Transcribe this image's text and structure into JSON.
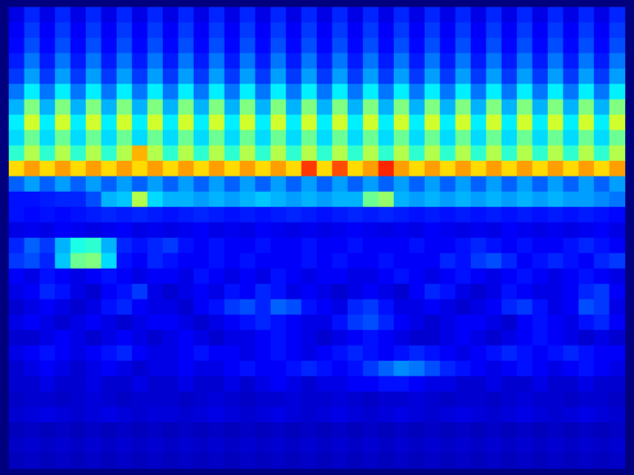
{
  "chart_data": {
    "type": "heatmap",
    "color": "jet",
    "tick_labels": false,
    "zlim": [
      0,
      100
    ],
    "cells": [
      [
        10,
        16,
        10,
        16,
        10,
        16,
        10,
        16,
        10,
        16,
        10,
        16,
        10,
        16,
        10,
        16,
        10,
        16,
        10,
        16,
        10,
        16,
        10,
        16,
        10,
        16,
        10,
        16,
        10,
        16,
        10,
        16,
        10,
        16,
        10,
        16,
        10,
        16,
        10,
        16
      ],
      [
        12,
        18,
        12,
        18,
        12,
        18,
        12,
        18,
        12,
        18,
        12,
        18,
        12,
        18,
        12,
        18,
        12,
        18,
        12,
        18,
        12,
        18,
        12,
        18,
        12,
        18,
        12,
        18,
        12,
        18,
        12,
        18,
        12,
        18,
        12,
        18,
        12,
        18,
        12,
        18
      ],
      [
        13,
        20,
        13,
        20,
        13,
        20,
        13,
        20,
        13,
        20,
        13,
        20,
        13,
        20,
        13,
        20,
        13,
        20,
        13,
        20,
        13,
        20,
        13,
        20,
        13,
        20,
        13,
        20,
        13,
        20,
        13,
        20,
        13,
        20,
        13,
        20,
        13,
        20,
        13,
        20
      ],
      [
        15,
        24,
        15,
        24,
        15,
        24,
        15,
        24,
        15,
        24,
        15,
        24,
        15,
        24,
        15,
        24,
        15,
        24,
        15,
        24,
        15,
        24,
        15,
        24,
        15,
        24,
        15,
        24,
        15,
        24,
        15,
        24,
        15,
        24,
        15,
        24,
        15,
        24,
        15,
        24
      ],
      [
        18,
        28,
        18,
        28,
        18,
        28,
        18,
        28,
        18,
        28,
        18,
        28,
        18,
        28,
        18,
        28,
        18,
        28,
        18,
        28,
        18,
        28,
        18,
        28,
        18,
        28,
        18,
        28,
        18,
        28,
        18,
        28,
        18,
        28,
        18,
        28,
        18,
        28,
        18,
        28
      ],
      [
        24,
        36,
        24,
        36,
        24,
        36,
        24,
        36,
        24,
        36,
        24,
        36,
        24,
        36,
        24,
        36,
        24,
        36,
        24,
        36,
        24,
        36,
        24,
        36,
        24,
        36,
        24,
        36,
        24,
        36,
        24,
        36,
        24,
        36,
        24,
        36,
        24,
        36,
        24,
        36
      ],
      [
        30,
        50,
        30,
        50,
        30,
        50,
        30,
        50,
        30,
        50,
        30,
        50,
        30,
        50,
        30,
        50,
        30,
        50,
        30,
        50,
        30,
        50,
        30,
        50,
        30,
        50,
        30,
        50,
        30,
        50,
        30,
        50,
        30,
        50,
        30,
        50,
        30,
        50,
        30,
        50
      ],
      [
        36,
        58,
        36,
        58,
        36,
        58,
        36,
        58,
        36,
        58,
        36,
        58,
        36,
        58,
        36,
        58,
        36,
        58,
        36,
        58,
        36,
        58,
        36,
        58,
        36,
        58,
        36,
        58,
        36,
        58,
        36,
        58,
        36,
        58,
        36,
        58,
        36,
        58,
        36,
        58
      ],
      [
        34,
        48,
        34,
        48,
        34,
        48,
        34,
        48,
        34,
        48,
        34,
        48,
        34,
        48,
        34,
        48,
        34,
        48,
        34,
        48,
        34,
        48,
        34,
        48,
        34,
        48,
        34,
        48,
        34,
        48,
        34,
        48,
        34,
        48,
        34,
        48,
        34,
        48,
        34,
        48
      ],
      [
        42,
        55,
        42,
        55,
        42,
        55,
        42,
        55,
        70,
        55,
        42,
        55,
        42,
        55,
        42,
        55,
        42,
        55,
        42,
        55,
        42,
        55,
        42,
        55,
        42,
        55,
        42,
        55,
        42,
        55,
        42,
        55,
        42,
        55,
        42,
        55,
        42,
        55,
        42,
        55
      ],
      [
        66,
        72,
        66,
        72,
        66,
        72,
        66,
        72,
        66,
        72,
        66,
        72,
        66,
        72,
        66,
        72,
        66,
        72,
        66,
        82,
        66,
        80,
        66,
        72,
        84,
        72,
        66,
        72,
        66,
        72,
        66,
        72,
        66,
        72,
        66,
        72,
        66,
        72,
        66,
        72
      ],
      [
        22,
        28,
        22,
        28,
        22,
        28,
        22,
        28,
        22,
        28,
        22,
        28,
        22,
        28,
        22,
        28,
        22,
        28,
        22,
        28,
        22,
        28,
        22,
        28,
        22,
        28,
        22,
        28,
        22,
        28,
        22,
        28,
        22,
        28,
        22,
        28,
        22,
        28,
        22,
        28
      ],
      [
        14,
        14,
        15,
        16,
        16,
        20,
        30,
        32,
        55,
        34,
        30,
        30,
        28,
        30,
        28,
        30,
        32,
        30,
        28,
        30,
        28,
        30,
        30,
        48,
        52,
        30,
        28,
        30,
        28,
        30,
        28,
        30,
        28,
        30,
        28,
        30,
        28,
        28,
        26,
        24
      ],
      [
        14,
        13,
        14,
        13,
        14,
        15,
        16,
        15,
        16,
        15,
        14,
        15,
        16,
        15,
        14,
        15,
        14,
        15,
        16,
        15,
        14,
        15,
        16,
        15,
        16,
        15,
        14,
        15,
        14,
        15,
        14,
        15,
        14,
        15,
        14,
        15,
        14,
        15,
        14,
        13
      ],
      [
        10,
        11,
        10,
        12,
        11,
        10,
        11,
        12,
        10,
        11,
        10,
        11,
        12,
        10,
        11,
        10,
        12,
        11,
        10,
        11,
        10,
        11,
        12,
        11,
        10,
        11,
        10,
        12,
        11,
        10,
        11,
        10,
        12,
        11,
        10,
        11,
        10,
        11,
        12,
        10
      ],
      [
        16,
        22,
        18,
        30,
        40,
        42,
        30,
        16,
        14,
        16,
        18,
        14,
        12,
        14,
        12,
        12,
        14,
        12,
        12,
        14,
        12,
        12,
        14,
        12,
        12,
        12,
        14,
        12,
        12,
        14,
        16,
        14,
        12,
        14,
        12,
        12,
        14,
        16,
        14,
        12
      ],
      [
        18,
        20,
        16,
        32,
        48,
        50,
        34,
        14,
        12,
        16,
        14,
        12,
        12,
        14,
        12,
        14,
        12,
        12,
        12,
        14,
        12,
        14,
        12,
        12,
        14,
        12,
        12,
        12,
        16,
        14,
        18,
        20,
        16,
        12,
        14,
        16,
        14,
        12,
        16,
        18
      ],
      [
        12,
        10,
        14,
        12,
        10,
        12,
        14,
        12,
        10,
        12,
        12,
        10,
        14,
        12,
        10,
        12,
        10,
        14,
        12,
        10,
        12,
        12,
        10,
        10,
        12,
        14,
        12,
        10,
        12,
        14,
        12,
        10,
        12,
        14,
        12,
        10,
        12,
        14,
        12,
        10
      ],
      [
        10,
        12,
        16,
        14,
        10,
        8,
        12,
        14,
        18,
        10,
        8,
        10,
        12,
        10,
        14,
        12,
        16,
        14,
        10,
        12,
        10,
        8,
        10,
        12,
        10,
        8,
        12,
        16,
        14,
        10,
        8,
        10,
        14,
        12,
        10,
        10,
        12,
        16,
        18,
        12
      ],
      [
        8,
        10,
        12,
        10,
        8,
        10,
        14,
        16,
        12,
        10,
        10,
        8,
        12,
        14,
        18,
        20,
        16,
        22,
        20,
        14,
        12,
        10,
        16,
        18,
        14,
        10,
        10,
        12,
        10,
        8,
        10,
        12,
        16,
        18,
        14,
        10,
        12,
        20,
        18,
        10
      ],
      [
        10,
        12,
        10,
        8,
        10,
        12,
        10,
        8,
        10,
        12,
        12,
        10,
        8,
        10,
        12,
        14,
        16,
        14,
        12,
        10,
        10,
        14,
        18,
        20,
        16,
        12,
        10,
        8,
        10,
        12,
        12,
        10,
        8,
        12,
        14,
        12,
        10,
        14,
        16,
        12
      ],
      [
        8,
        8,
        10,
        12,
        10,
        8,
        10,
        12,
        10,
        8,
        10,
        12,
        10,
        8,
        10,
        10,
        12,
        14,
        12,
        10,
        8,
        10,
        12,
        14,
        12,
        10,
        8,
        8,
        10,
        12,
        10,
        8,
        10,
        12,
        14,
        12,
        10,
        8,
        10,
        8
      ],
      [
        10,
        12,
        14,
        12,
        10,
        12,
        14,
        16,
        12,
        10,
        10,
        12,
        14,
        12,
        12,
        10,
        12,
        14,
        12,
        10,
        12,
        14,
        16,
        14,
        12,
        14,
        16,
        14,
        12,
        10,
        12,
        14,
        16,
        14,
        12,
        14,
        16,
        14,
        12,
        12
      ],
      [
        8,
        10,
        12,
        10,
        8,
        10,
        12,
        10,
        8,
        10,
        10,
        12,
        10,
        10,
        12,
        14,
        12,
        12,
        14,
        16,
        14,
        12,
        14,
        18,
        22,
        26,
        24,
        20,
        16,
        14,
        12,
        10,
        12,
        14,
        12,
        10,
        12,
        14,
        12,
        10
      ],
      [
        8,
        8,
        10,
        8,
        8,
        10,
        8,
        8,
        10,
        8,
        8,
        10,
        8,
        8,
        10,
        8,
        10,
        12,
        10,
        8,
        10,
        10,
        12,
        12,
        14,
        14,
        12,
        10,
        10,
        8,
        8,
        10,
        8,
        8,
        10,
        8,
        8,
        10,
        8,
        8
      ],
      [
        7,
        8,
        8,
        7,
        8,
        9,
        8,
        7,
        8,
        8,
        8,
        7,
        8,
        9,
        8,
        7,
        8,
        8,
        9,
        8,
        8,
        9,
        8,
        7,
        8,
        8,
        9,
        8,
        7,
        8,
        8,
        7,
        8,
        9,
        8,
        8,
        7,
        8,
        8,
        7
      ],
      [
        8,
        9,
        10,
        9,
        8,
        9,
        10,
        9,
        8,
        9,
        9,
        8,
        9,
        10,
        9,
        8,
        9,
        10,
        9,
        8,
        9,
        10,
        9,
        8,
        9,
        10,
        9,
        8,
        9,
        10,
        9,
        8,
        9,
        10,
        9,
        8,
        9,
        10,
        9,
        8
      ],
      [
        6,
        7,
        6,
        7,
        6,
        7,
        6,
        7,
        6,
        7,
        6,
        7,
        6,
        7,
        6,
        7,
        6,
        7,
        6,
        7,
        6,
        7,
        6,
        7,
        6,
        7,
        6,
        7,
        6,
        7,
        6,
        7,
        6,
        7,
        6,
        7,
        6,
        7,
        6,
        7
      ],
      [
        7,
        8,
        7,
        8,
        7,
        8,
        7,
        8,
        7,
        8,
        7,
        8,
        7,
        8,
        7,
        8,
        7,
        8,
        7,
        8,
        7,
        8,
        7,
        8,
        7,
        8,
        7,
        8,
        7,
        8,
        7,
        8,
        7,
        8,
        7,
        8,
        7,
        8,
        7,
        8
      ],
      [
        6,
        7,
        6,
        7,
        6,
        7,
        6,
        7,
        6,
        7,
        6,
        7,
        6,
        7,
        6,
        7,
        6,
        7,
        6,
        7,
        6,
        7,
        6,
        7,
        6,
        7,
        6,
        7,
        6,
        7,
        6,
        7,
        6,
        7,
        6,
        7,
        6,
        7,
        6,
        7
      ]
    ]
  }
}
